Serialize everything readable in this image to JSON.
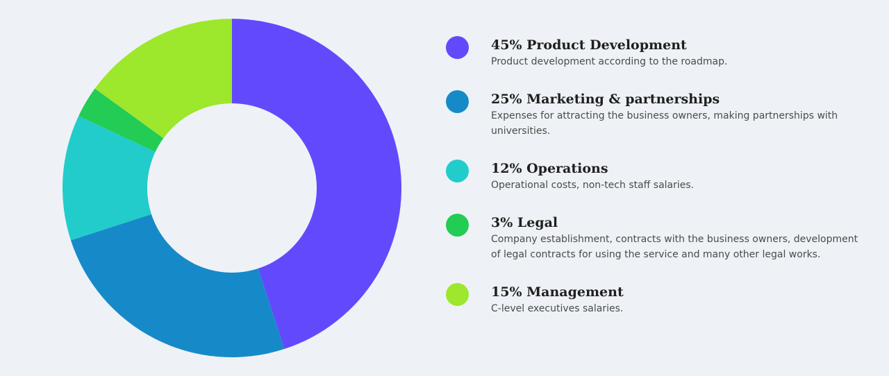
{
  "chart_data": {
    "type": "pie",
    "categories": [
      "Product Development",
      "Marketing & partnerships",
      "Operations",
      "Legal",
      "Management"
    ],
    "values": [
      45,
      25,
      12,
      3,
      15
    ],
    "colors": [
      "#6349fc",
      "#168ac8",
      "#22cccb",
      "#22cc55",
      "#9de72c"
    ]
  },
  "legend": [
    {
      "title": "45% Product Development",
      "description": "Product development according to the roadmap.",
      "color": "#6349fc"
    },
    {
      "title": "25% Marketing & partnerships",
      "description": "Expenses for attracting the business owners, making partnerships with universities.",
      "color": "#168ac8"
    },
    {
      "title": "12% Operations",
      "description": "Operational costs, non-tech staff salaries.",
      "color": "#22cccb"
    },
    {
      "title": "3% Legal",
      "description": "Company establishment, contracts with the business owners, development of legal contracts for using the service and many other legal works.",
      "color": "#22cc55"
    },
    {
      "title": "15% Management",
      "description": "C-level executives salaries.",
      "color": "#9de72c"
    }
  ]
}
